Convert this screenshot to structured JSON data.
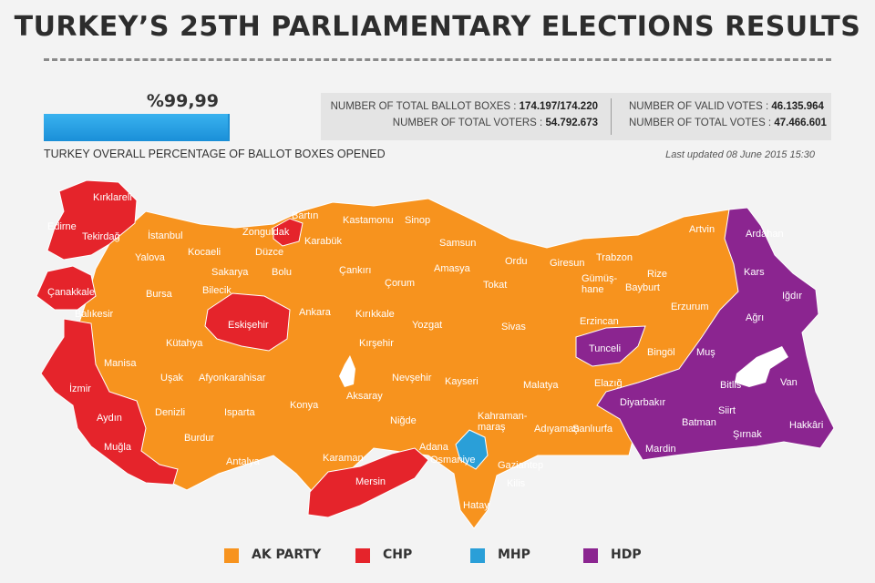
{
  "title": "TURKEY’S 25TH PARLIAMENTARY ELECTIONS RESULTS",
  "progress": {
    "value_text": "%99,99",
    "fraction": 0.9999,
    "caption": "TURKEY OVERALL PERCENTAGE OF BALLOT BOXES OPENED"
  },
  "stats": {
    "ballot_boxes_label": "NUMBER OF TOTAL BALLOT BOXES :",
    "ballot_boxes_value": "174.197/174.220",
    "total_voters_label": "NUMBER OF TOTAL VOTERS :",
    "total_voters_value": "54.792.673",
    "valid_votes_label": "NUMBER OF VALID VOTES :",
    "valid_votes_value": "46.135.964",
    "total_votes_label": "NUMBER OF TOTAL VOTES :",
    "total_votes_value": "47.466.601"
  },
  "last_updated": "Last updated 08 June 2015 15:30",
  "colors": {
    "ak_party": "#f7931e",
    "chp": "#e5242b",
    "mhp": "#2a9fd8",
    "hdp": "#8b2590",
    "lake": "#ffffff"
  },
  "legend": [
    {
      "label": "AK PARTY",
      "color": "#f7931e"
    },
    {
      "label": "CHP",
      "color": "#e5242b"
    },
    {
      "label": "MHP",
      "color": "#2a9fd8"
    },
    {
      "label": "HDP",
      "color": "#8b2590"
    }
  ],
  "provinces": {
    "kirklareli": "Kırklareli",
    "edirne": "Edirne",
    "tekirdag": "Tekirdağ",
    "istanbul": "İstanbul",
    "yalova": "Yalova",
    "canakkale": "Çanakkale",
    "balikesir": "Balıkesir",
    "bursa": "Bursa",
    "kocaeli": "Kocaeli",
    "sakarya": "Sakarya",
    "bilecik": "Bilecik",
    "duzce": "Düzce",
    "zonguldak": "Zonguldak",
    "bartin": "Bartın",
    "karabuk": "Karabük",
    "bolu": "Bolu",
    "kastamonu": "Kastamonu",
    "sinop": "Sinop",
    "cankiri": "Çankırı",
    "samsun": "Samsun",
    "amasya": "Amasya",
    "corum": "Çorum",
    "ordu": "Ordu",
    "giresun": "Giresun",
    "trabzon": "Trabzon",
    "rize": "Rize",
    "artvin": "Artvin",
    "ardahan": "Ardahan",
    "kars": "Kars",
    "igdir": "Iğdır",
    "agri": "Ağrı",
    "gumushane": "Gümüş-\nhane",
    "bayburt": "Bayburt",
    "erzurum": "Erzurum",
    "erzincan": "Erzincan",
    "tokat": "Tokat",
    "sivas": "Sivas",
    "yozgat": "Yozgat",
    "kirikkale": "Kırıkkale",
    "ankara": "Ankara",
    "eskisehir": "Eskişehir",
    "kutahya": "Kütahya",
    "manisa": "Manisa",
    "izmir": "İzmir",
    "usak": "Uşak",
    "afyonkarahisar": "Afyonkarahisar",
    "aydin": "Aydın",
    "denizli": "Denizli",
    "mugla": "Muğla",
    "burdur": "Burdur",
    "isparta": "Isparta",
    "antalya": "Antalya",
    "konya": "Konya",
    "aksaray": "Aksaray",
    "kirsehir": "Kırşehir",
    "nevsehir": "Nevşehir",
    "nigde": "Niğde",
    "kayseri": "Kayseri",
    "karaman": "Karaman",
    "mersin": "Mersin",
    "adana": "Adana",
    "osmaniye": "Osmaniye",
    "hatay": "Hatay",
    "kilis": "Kilis",
    "gaziantep": "Gaziantep",
    "kahramanmaras": "Kahraman-\nmaraş",
    "adiyaman": "Adıyaman",
    "malatya": "Malatya",
    "elazig": "Elazığ",
    "tunceli": "Tunceli",
    "bingol": "Bingöl",
    "mus": "Muş",
    "bitlis": "Bitlis",
    "van": "Van",
    "diyarbakir": "Diyarbakır",
    "batman": "Batman",
    "siirt": "Siirt",
    "sirnak": "Şırnak",
    "hakkari": "Hakkâri",
    "mardin": "Mardin",
    "sanliurfa": "Şanlıurfa"
  }
}
